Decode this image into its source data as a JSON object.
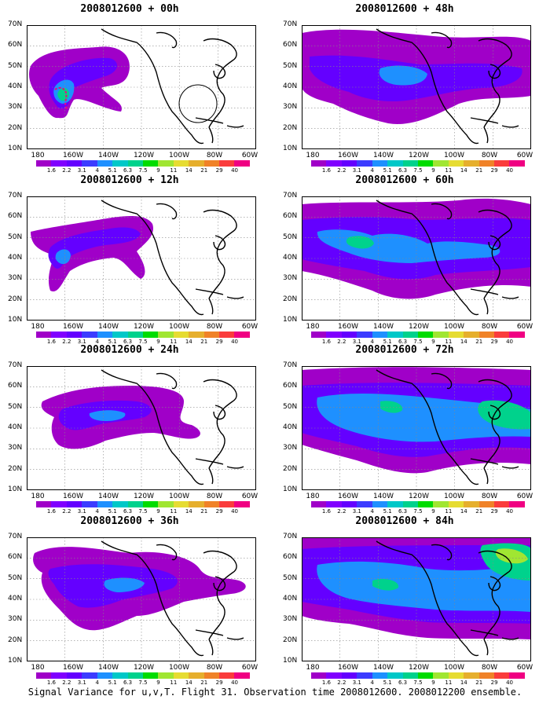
{
  "panels": [
    {
      "id": "p00",
      "title": "2008012600 + 00h",
      "col": 0,
      "row": 0
    },
    {
      "id": "p12",
      "title": "2008012600 + 12h",
      "col": 0,
      "row": 1
    },
    {
      "id": "p24",
      "title": "2008012600 + 24h",
      "col": 0,
      "row": 2
    },
    {
      "id": "p36",
      "title": "2008012600 + 36h",
      "col": 0,
      "row": 3
    },
    {
      "id": "p48",
      "title": "2008012600 + 48h",
      "col": 1,
      "row": 0
    },
    {
      "id": "p60",
      "title": "2008012600 + 60h",
      "col": 1,
      "row": 1
    },
    {
      "id": "p72",
      "title": "2008012600 + 72h",
      "col": 1,
      "row": 2
    },
    {
      "id": "p84",
      "title": "2008012600 + 84h",
      "col": 1,
      "row": 3
    }
  ],
  "axes": {
    "lat_labels": [
      "70N",
      "60N",
      "50N",
      "40N",
      "30N",
      "20N",
      "10N"
    ],
    "lon_labels": [
      "180",
      "160W",
      "140W",
      "120W",
      "100W",
      "80W",
      "60W"
    ]
  },
  "colorbar": {
    "values": [
      "1.6",
      "2.2",
      "3.1",
      "4",
      "5.1",
      "6.3",
      "7.5",
      "9",
      "11",
      "14",
      "21",
      "29",
      "40"
    ],
    "colors": [
      "#a000c8",
      "#8000ff",
      "#6400ff",
      "#3c3cff",
      "#1e90ff",
      "#00c8c8",
      "#00d28c",
      "#00dc00",
      "#a0e632",
      "#e6dc32",
      "#e6af2d",
      "#f08228",
      "#fa3c3c",
      "#f00082"
    ]
  },
  "footer": "Signal Variance for u,v,T. Flight 31. Observation time 2008012600. 2008012200 ensemble."
}
